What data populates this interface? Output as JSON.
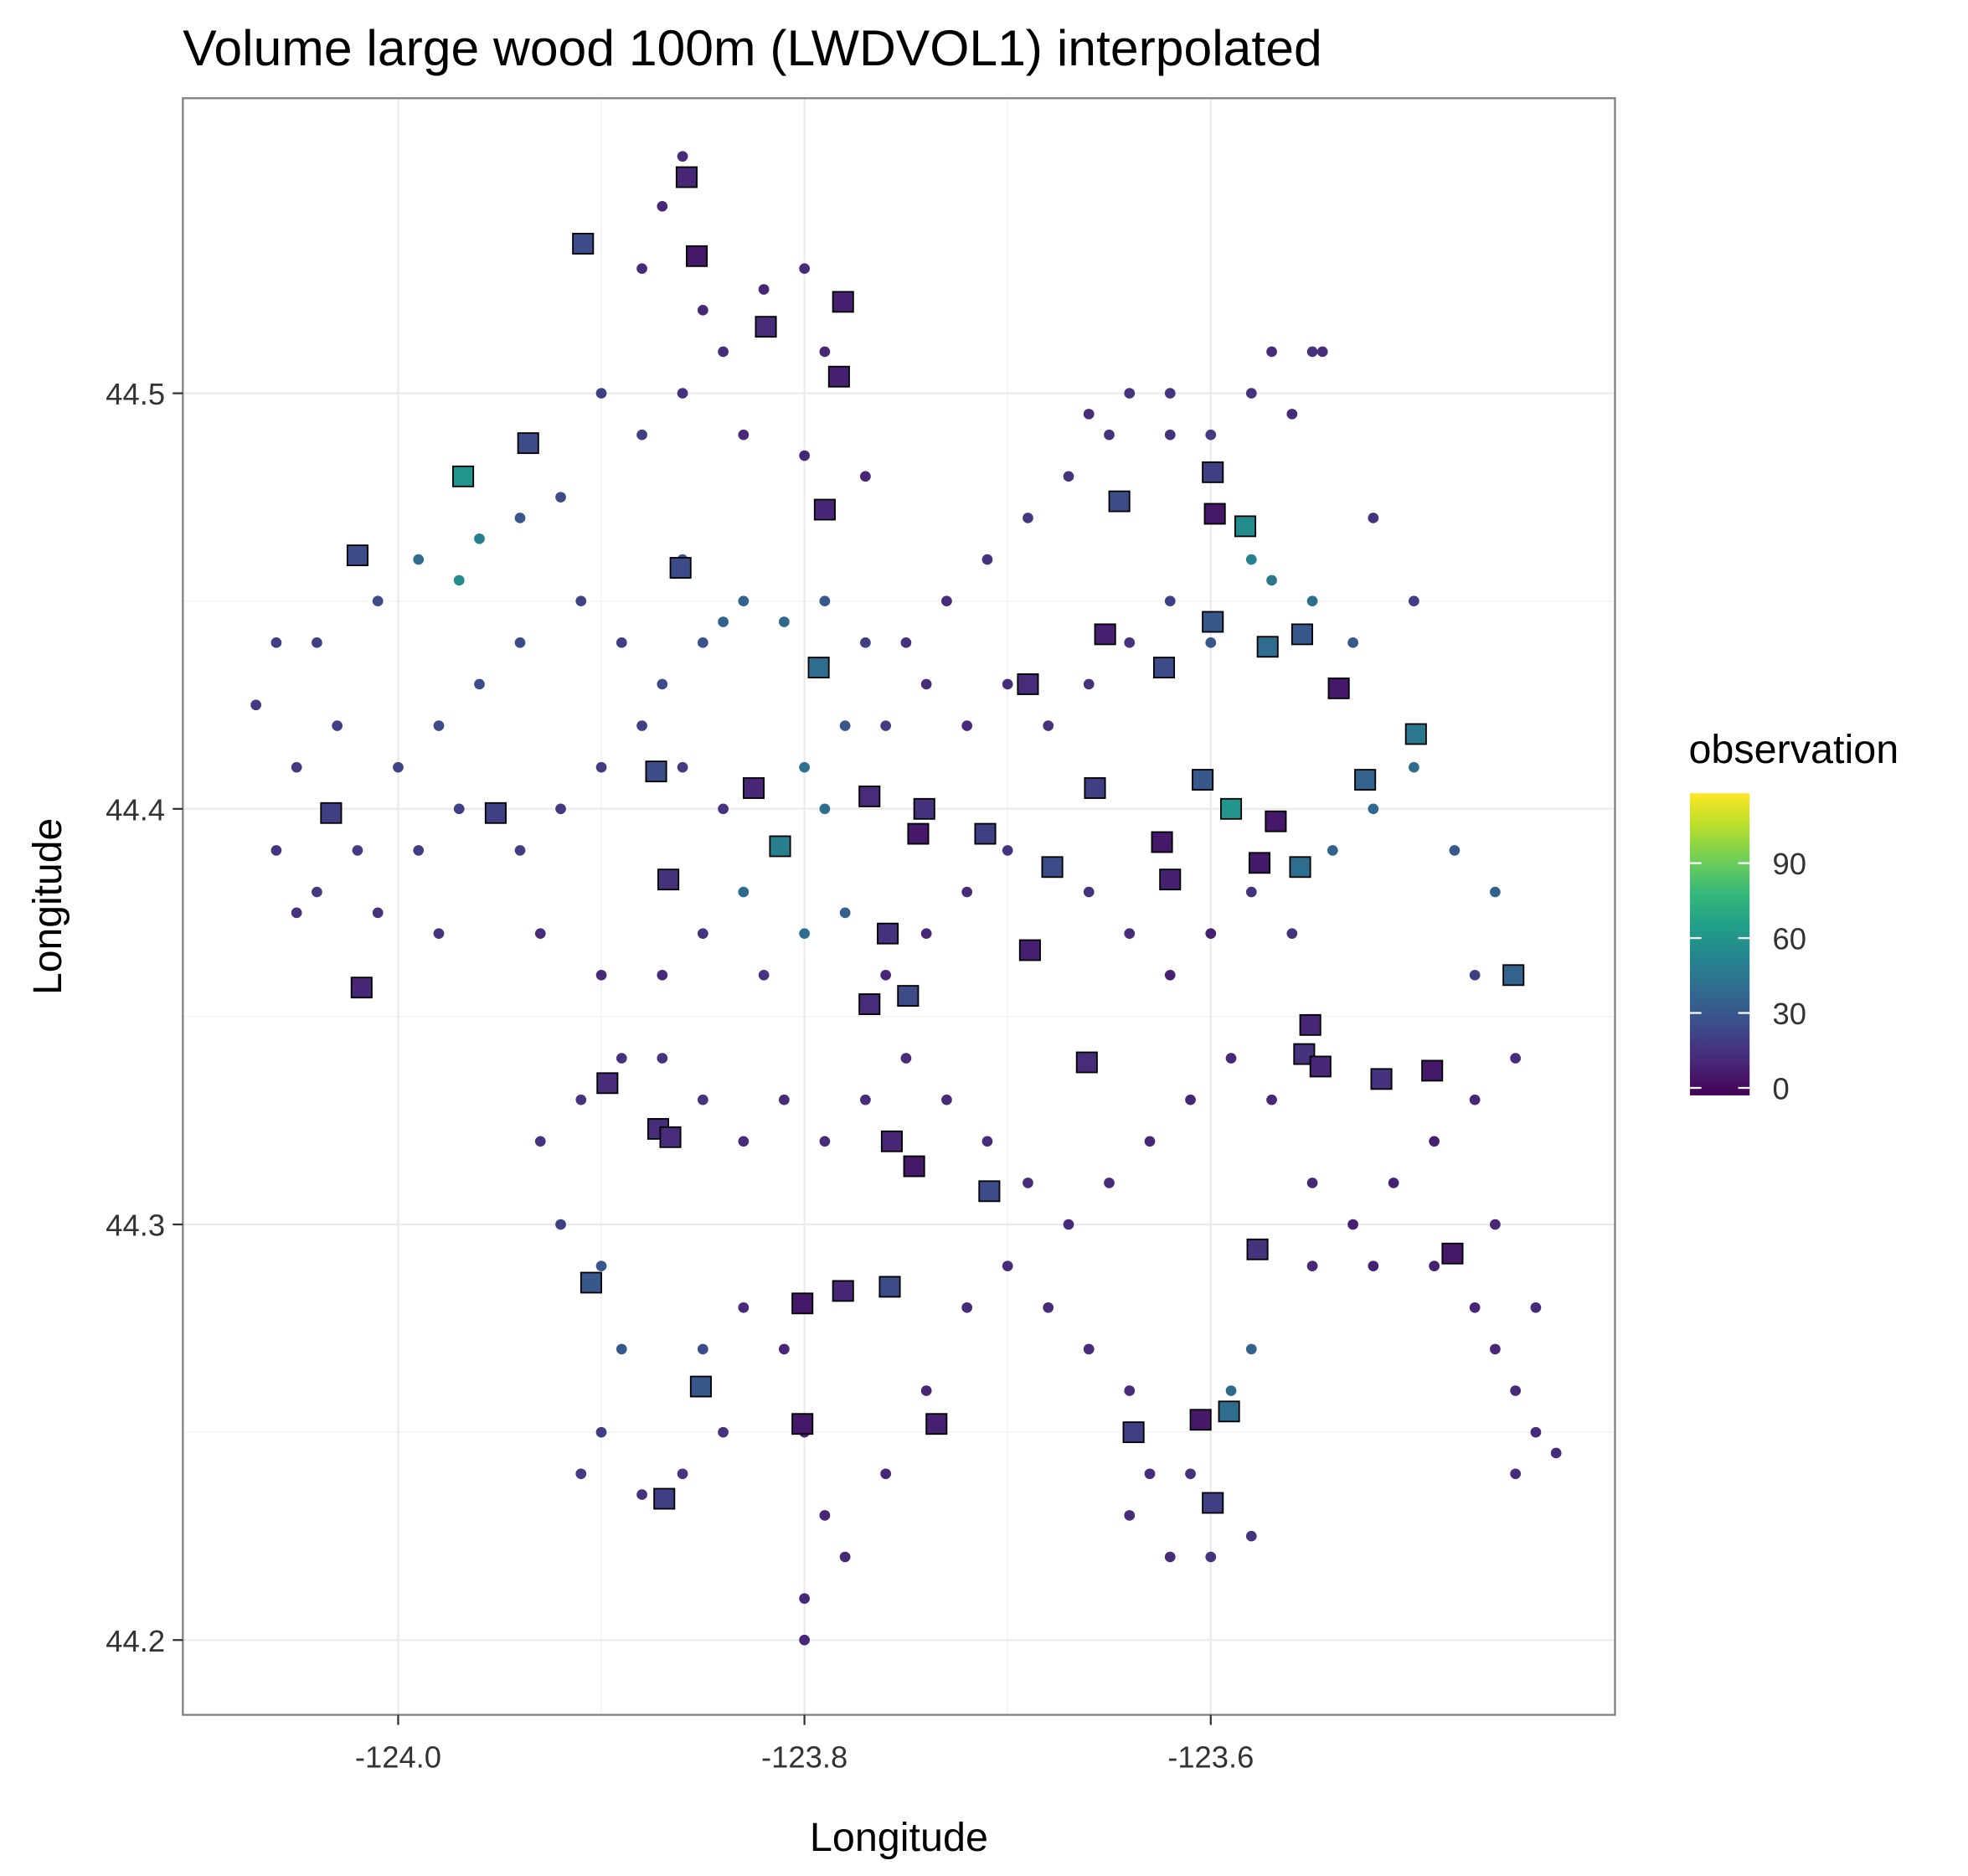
{
  "chart_data": {
    "type": "scatter",
    "title": "Volume large wood 100m (LWDVOL1) interpolated",
    "xlabel": "Longitude",
    "ylabel": "Longitude",
    "xlim": [
      -124.106,
      -123.401
    ],
    "ylim": [
      44.182,
      44.571
    ],
    "xticks": [
      {
        "value": -124.0,
        "label": "-124.0"
      },
      {
        "value": -123.8,
        "label": "-123.8"
      },
      {
        "value": -123.6,
        "label": "-123.6"
      }
    ],
    "yticks": [
      {
        "value": 44.2,
        "label": "44.2"
      },
      44.3,
      44.4,
      44.5
    ],
    "grid": true,
    "colorbar": {
      "title": "observation",
      "lim": [
        -3,
        118
      ],
      "ticks": [
        0,
        30,
        60,
        90
      ],
      "colors": [
        "#440154",
        "#482878",
        "#3e4989",
        "#31688e",
        "#26828e",
        "#1f9e89",
        "#35b779",
        "#6ece58",
        "#b5de2b",
        "#fde725"
      ]
    },
    "series": [
      {
        "marker": "circle",
        "x": [
          -123.86,
          -123.87,
          -123.88,
          -123.85,
          -123.84,
          -123.82,
          -123.8,
          -123.79,
          -123.86,
          -123.88,
          -123.9,
          -123.83,
          -123.8,
          -123.77,
          -123.92,
          -123.94,
          -123.96,
          -123.97,
          -123.99,
          -124.01,
          -124.04,
          -124.06,
          -124.07,
          -124.05,
          -124.03,
          -124.0,
          -123.98,
          -123.96,
          -123.94,
          -123.91,
          -123.89,
          -123.87,
          -123.85,
          -123.83,
          -123.81,
          -123.79,
          -123.77,
          -123.75,
          -123.73,
          -123.71,
          -123.69,
          -123.67,
          -123.65,
          -123.66,
          -123.62,
          -123.6,
          -123.58,
          -123.56,
          -123.55,
          -123.52,
          -123.5,
          -123.53,
          -123.55,
          -123.57,
          -123.58,
          -123.6,
          -123.62,
          -123.64,
          -123.66,
          -123.68,
          -123.7,
          -123.72,
          -123.74,
          -123.76,
          -123.78,
          -123.8,
          -123.79,
          -123.81,
          -123.83,
          -123.8,
          -123.78,
          -123.84,
          -123.86,
          -123.88,
          -123.9,
          -123.92,
          -123.94,
          -123.97,
          -123.99,
          -124.02,
          -124.04,
          -124.06,
          -124.05,
          -124.01,
          -123.98,
          -123.93,
          -123.9,
          -123.87,
          -123.85,
          -123.82,
          -123.76,
          -123.74,
          -123.72,
          -123.7,
          -123.66,
          -123.64,
          -123.62,
          -123.6,
          -123.58,
          -123.56,
          -123.54,
          -123.52,
          -123.5,
          -123.48,
          -123.46,
          -123.47,
          -123.45,
          -123.47,
          -123.49,
          -123.51,
          -123.53,
          -123.55,
          -123.57,
          -123.59,
          -123.61,
          -123.63,
          -123.65,
          -123.67,
          -123.69,
          -123.71,
          -123.73,
          -123.75,
          -123.77,
          -123.79,
          -123.81,
          -123.83,
          -123.85,
          -123.87,
          -123.89,
          -123.91,
          -123.93,
          -123.92,
          -123.9,
          -123.89,
          -123.9,
          -123.91,
          -123.88,
          -123.86,
          -123.84,
          -123.85,
          -123.83,
          -123.81,
          -123.8,
          -123.79,
          -123.8,
          -123.8,
          -123.78,
          -123.76,
          -123.74,
          -123.72,
          -123.7,
          -123.68,
          -123.66,
          -123.64,
          -123.63,
          -123.64,
          -123.62,
          -123.61,
          -123.59,
          -123.58,
          -123.6,
          -123.58,
          -123.55,
          -123.52,
          -123.49,
          -123.47,
          -123.46,
          -123.45,
          -123.44,
          -123.43,
          -123.45,
          -123.44,
          -123.46,
          -123.57,
          -123.545,
          -123.62,
          -123.64,
          -123.84,
          -123.86
        ],
        "y": [
          44.557,
          44.545,
          44.53,
          44.52,
          44.51,
          44.525,
          44.53,
          44.51,
          44.5,
          44.49,
          44.5,
          44.49,
          44.485,
          44.48,
          44.475,
          44.47,
          44.465,
          44.455,
          44.46,
          44.45,
          44.44,
          44.44,
          44.425,
          44.41,
          44.42,
          44.41,
          44.42,
          44.43,
          44.44,
          44.45,
          44.44,
          44.43,
          44.44,
          44.45,
          44.445,
          44.45,
          44.44,
          44.44,
          44.45,
          44.46,
          44.47,
          44.48,
          44.49,
          44.495,
          44.49,
          44.49,
          44.5,
          44.495,
          44.51,
          44.47,
          44.45,
          44.44,
          44.45,
          44.455,
          44.46,
          44.44,
          44.45,
          44.44,
          44.43,
          44.42,
          44.43,
          44.42,
          44.43,
          44.42,
          44.42,
          44.41,
          44.4,
          44.39,
          44.38,
          44.37,
          44.375,
          44.4,
          44.41,
          44.42,
          44.41,
          44.4,
          44.39,
          44.4,
          44.39,
          44.39,
          44.38,
          44.39,
          44.375,
          44.375,
          44.37,
          44.37,
          44.36,
          44.36,
          44.37,
          44.36,
          44.36,
          44.37,
          44.38,
          44.39,
          44.38,
          44.37,
          44.36,
          44.37,
          44.38,
          44.37,
          44.39,
          44.4,
          44.41,
          44.39,
          44.38,
          44.36,
          44.34,
          44.33,
          44.32,
          44.31,
          44.3,
          44.31,
          44.33,
          44.34,
          44.33,
          44.32,
          44.31,
          44.3,
          44.31,
          44.32,
          44.33,
          44.34,
          44.33,
          44.32,
          44.33,
          44.32,
          44.33,
          44.34,
          44.34,
          44.33,
          44.32,
          44.3,
          44.29,
          44.27,
          44.25,
          44.24,
          44.235,
          44.24,
          44.25,
          44.27,
          44.28,
          44.27,
          44.25,
          44.23,
          44.21,
          44.2,
          44.22,
          44.24,
          44.26,
          44.28,
          44.29,
          44.28,
          44.27,
          44.26,
          44.24,
          44.23,
          44.22,
          44.24,
          44.26,
          44.27,
          44.22,
          44.225,
          44.29,
          44.29,
          44.29,
          44.28,
          44.27,
          44.26,
          44.25,
          44.245,
          44.24,
          44.28,
          44.3,
          44.51,
          44.51,
          44.5,
          44.5,
          44.445,
          44.46
        ],
        "values": [
          12,
          10,
          12,
          10,
          12,
          10,
          12,
          10,
          15,
          20,
          20,
          12,
          10,
          10,
          25,
          30,
          50,
          55,
          40,
          25,
          20,
          20,
          18,
          18,
          20,
          22,
          25,
          25,
          25,
          22,
          20,
          25,
          28,
          35,
          38,
          30,
          20,
          15,
          12,
          15,
          18,
          15,
          15,
          12,
          15,
          18,
          15,
          12,
          15,
          15,
          18,
          30,
          40,
          45,
          50,
          30,
          20,
          15,
          15,
          15,
          12,
          12,
          12,
          18,
          30,
          42,
          40,
          45,
          38,
          40,
          35,
          15,
          18,
          20,
          18,
          18,
          18,
          20,
          20,
          18,
          18,
          15,
          15,
          15,
          15,
          12,
          12,
          12,
          15,
          15,
          10,
          10,
          12,
          15,
          15,
          12,
          8,
          8,
          15,
          15,
          35,
          38,
          40,
          30,
          35,
          20,
          12,
          10,
          8,
          8,
          8,
          10,
          10,
          10,
          10,
          10,
          12,
          12,
          12,
          12,
          12,
          12,
          12,
          12,
          12,
          12,
          15,
          15,
          15,
          15,
          15,
          20,
          30,
          30,
          20,
          18,
          15,
          15,
          15,
          25,
          12,
          10,
          10,
          10,
          10,
          10,
          10,
          10,
          10,
          12,
          12,
          12,
          12,
          12,
          12,
          12,
          12,
          15,
          38,
          35,
          15,
          15,
          10,
          8,
          8,
          10,
          10,
          12,
          12,
          12,
          12,
          12,
          10,
          12,
          12,
          15,
          15,
          35,
          30
        ]
      },
      {
        "marker": "square",
        "x": [
          -123.858,
          -123.909,
          -123.853,
          -123.781,
          -123.819,
          -123.783,
          -123.936,
          -123.968,
          -123.79,
          -124.02,
          -123.861,
          -123.793,
          -124.033,
          -123.952,
          -123.873,
          -123.825,
          -123.768,
          -123.741,
          -123.744,
          -123.711,
          -123.678,
          -123.812,
          -123.867,
          -124.018,
          -123.759,
          -123.689,
          -123.749,
          -123.768,
          -123.897,
          -123.872,
          -123.866,
          -123.757,
          -123.746,
          -123.709,
          -123.645,
          -123.599,
          -123.598,
          -123.583,
          -123.599,
          -123.572,
          -123.555,
          -123.652,
          -123.623,
          -123.69,
          -123.604,
          -123.657,
          -123.537,
          -123.499,
          -123.524,
          -123.59,
          -123.568,
          -123.624,
          -123.62,
          -123.576,
          -123.556,
          -123.451,
          -123.551,
          -123.554,
          -123.546,
          -123.516,
          -123.491,
          -123.661,
          -123.577,
          -123.481,
          -123.905,
          -123.801,
          -123.781,
          -123.758,
          -123.851,
          -123.801,
          -123.735,
          -123.869,
          -123.638,
          -123.605,
          -123.591,
          -123.599
        ],
        "y": [
          44.552,
          44.536,
          44.533,
          44.522,
          44.516,
          44.504,
          44.488,
          44.48,
          44.472,
          44.461,
          44.458,
          44.434,
          44.399,
          44.399,
          44.409,
          44.405,
          44.403,
          44.4,
          44.394,
          44.394,
          44.386,
          44.391,
          44.383,
          44.357,
          44.37,
          44.366,
          44.355,
          44.353,
          44.334,
          44.323,
          44.321,
          44.32,
          44.314,
          44.308,
          44.474,
          44.481,
          44.471,
          44.468,
          44.445,
          44.439,
          44.442,
          44.442,
          44.434,
          44.43,
          44.407,
          44.405,
          44.429,
          44.418,
          44.407,
          44.4,
          44.397,
          44.392,
          44.383,
          44.387,
          44.386,
          44.36,
          44.348,
          44.341,
          44.338,
          44.335,
          44.337,
          44.339,
          44.294,
          44.293,
          44.286,
          44.281,
          44.284,
          44.285,
          44.261,
          44.252,
          44.252,
          44.234,
          44.25,
          44.253,
          44.255,
          44.233
        ],
        "values": [
          10,
          25,
          5,
          8,
          12,
          8,
          25,
          60,
          10,
          25,
          25,
          40,
          20,
          20,
          25,
          10,
          12,
          15,
          5,
          20,
          25,
          50,
          15,
          10,
          15,
          8,
          25,
          12,
          12,
          12,
          12,
          10,
          5,
          25,
          25,
          20,
          5,
          55,
          30,
          40,
          30,
          8,
          25,
          12,
          30,
          20,
          5,
          45,
          35,
          60,
          5,
          5,
          8,
          5,
          40,
          35,
          10,
          15,
          10,
          15,
          5,
          12,
          15,
          5,
          30,
          5,
          10,
          25,
          30,
          5,
          8,
          20,
          20,
          5,
          40,
          20
        ]
      }
    ]
  }
}
